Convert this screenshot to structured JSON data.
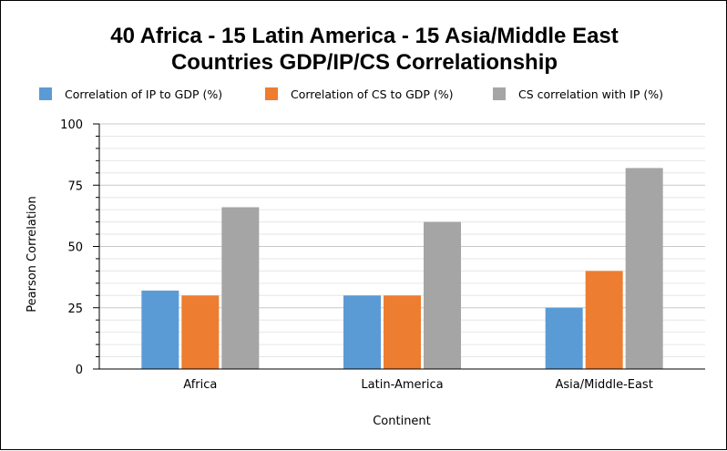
{
  "chart_data": {
    "type": "bar",
    "title_lines": [
      "40 Africa - 15 Latin America - 15 Asia/Middle East",
      "Countries GDP/IP/CS Correlationship"
    ],
    "xlabel": "Continent",
    "ylabel": "Pearson Correlation",
    "ylim": [
      0,
      100
    ],
    "yticks": [
      "0",
      "25",
      "50",
      "75",
      "100"
    ],
    "grid": true,
    "legend_position": "top",
    "categories": [
      "Africa",
      "Latin-America",
      "Asia/Middle-East"
    ],
    "series": [
      {
        "name": "Correlation of IP to GDP (%)",
        "color": "#5B9BD5",
        "values": [
          32,
          30,
          25
        ]
      },
      {
        "name": "Correlation of CS to GDP (%)",
        "color": "#ED7D31",
        "values": [
          30,
          30,
          40
        ]
      },
      {
        "name": "CS correlation with IP (%)",
        "color": "#A5A5A5",
        "values": [
          66,
          60,
          82
        ]
      }
    ]
  }
}
